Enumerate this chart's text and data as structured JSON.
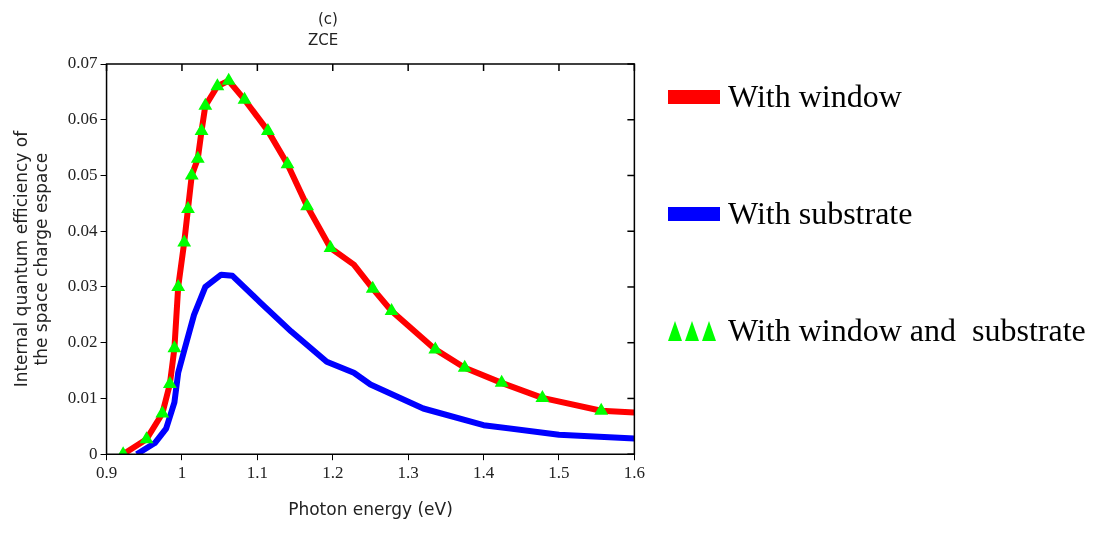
{
  "chart_data": {
    "type": "line",
    "title": "ZCE",
    "xlabel": "Photon energy (eV)",
    "ylabel": "Internal quantum efficiency of the space charge espace",
    "annotations": [
      "(c)"
    ],
    "xlim": [
      0.9,
      1.6
    ],
    "xticks": [
      0.9,
      1,
      1.1,
      1.2,
      1.3,
      1.4,
      1.5,
      1.6
    ],
    "ylim": [
      0,
      0.07
    ],
    "yticks": [
      0,
      0.01,
      0.02,
      0.03,
      0.04,
      0.05,
      0.06,
      0.07
    ],
    "grid": false,
    "legend": "right",
    "line_style": "solid",
    "series": [
      {
        "name": "With window",
        "color": "#ff0000",
        "x": [
          0.922,
          0.953,
          0.974,
          0.984,
          0.99,
          0.995,
          1.003,
          1.008,
          1.013,
          1.021,
          1.026,
          1.031,
          1.047,
          1.062,
          1.083,
          1.114,
          1.14,
          1.166,
          1.197,
          1.228,
          1.253,
          1.278,
          1.336,
          1.375,
          1.424,
          1.478,
          1.556,
          1.6
        ],
        "values": [
          0,
          0.0027,
          0.0073,
          0.0126,
          0.019,
          0.03,
          0.038,
          0.044,
          0.05,
          0.053,
          0.058,
          0.0625,
          0.066,
          0.067,
          0.0636,
          0.058,
          0.052,
          0.0445,
          0.037,
          0.034,
          0.0297,
          0.0257,
          0.0188,
          0.0155,
          0.0128,
          0.0101,
          0.0078,
          0.0075
        ]
      },
      {
        "name": "With substrate",
        "color": "#0000ff",
        "x": [
          0.94,
          0.964,
          0.979,
          0.99,
          0.995,
          1.003,
          1.016,
          1.031,
          1.052,
          1.067,
          1.104,
          1.145,
          1.192,
          1.228,
          1.25,
          1.32,
          1.4,
          1.5,
          1.6
        ],
        "values": [
          0,
          0.002,
          0.0046,
          0.0093,
          0.0146,
          0.0186,
          0.025,
          0.03,
          0.0322,
          0.032,
          0.0272,
          0.022,
          0.0166,
          0.0146,
          0.0125,
          0.0082,
          0.0052,
          0.0035,
          0.0028
        ]
      },
      {
        "name": "With window and  substrate",
        "type": "scatter",
        "color": "#00ff00",
        "marker": "triangle",
        "x": [
          0.922,
          0.953,
          0.974,
          0.984,
          0.99,
          0.995,
          1.003,
          1.008,
          1.013,
          1.021,
          1.026,
          1.031,
          1.047,
          1.062,
          1.083,
          1.114,
          1.14,
          1.166,
          1.197,
          1.253,
          1.278,
          1.336,
          1.375,
          1.424,
          1.478,
          1.556
        ],
        "values": [
          0,
          0.0027,
          0.0073,
          0.0126,
          0.019,
          0.03,
          0.038,
          0.044,
          0.05,
          0.053,
          0.058,
          0.0625,
          0.066,
          0.067,
          0.0636,
          0.058,
          0.052,
          0.0445,
          0.037,
          0.0297,
          0.0257,
          0.0188,
          0.0155,
          0.0128,
          0.0101,
          0.0078
        ]
      }
    ]
  }
}
